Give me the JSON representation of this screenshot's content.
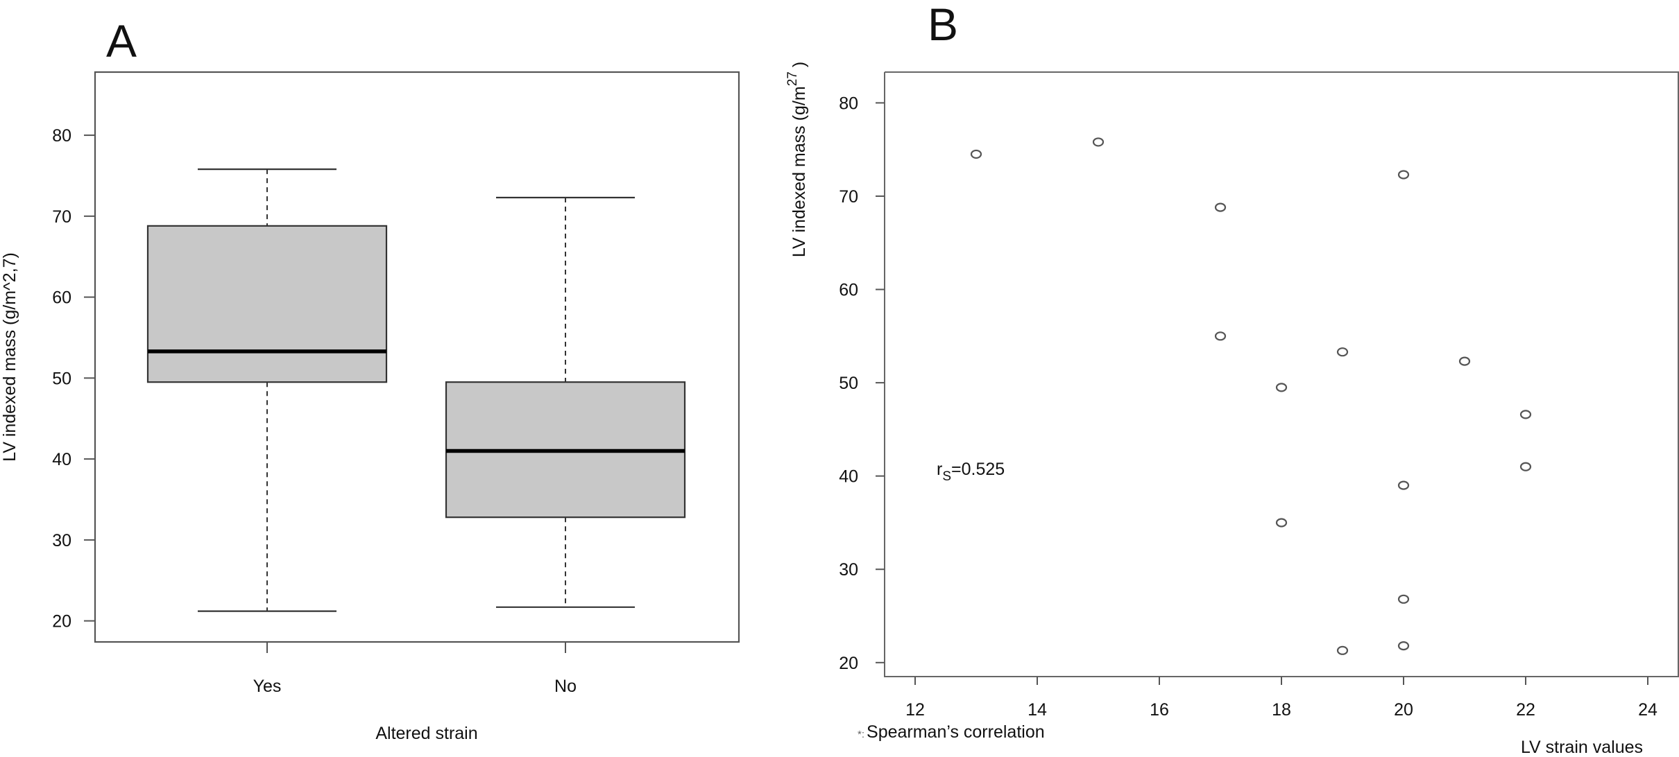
{
  "chart_data": [
    {
      "panel": "A",
      "type": "box",
      "xlabel": "Altered strain",
      "ylabel": "LV indexed mass (g/m^2,7)",
      "categories": [
        "Yes",
        "No"
      ],
      "boxes": [
        {
          "category": "Yes",
          "min": 21.2,
          "q1": 49.5,
          "median": 53.3,
          "q3": 68.8,
          "max": 75.8
        },
        {
          "category": "No",
          "min": 21.7,
          "q1": 32.8,
          "median": 41.0,
          "q3": 49.5,
          "max": 72.3
        }
      ],
      "yticks": [
        "20",
        "30",
        "40",
        "50",
        "60",
        "70",
        "80"
      ],
      "ylim": [
        17.4,
        87.8
      ],
      "box_color": "#c8c8c8"
    },
    {
      "panel": "B",
      "type": "scatter",
      "xlabel": "LV strain values",
      "ylabel_main": "LV indexed mass (g/m",
      "ylabel_sup": "27",
      "ylabel_close": ")",
      "xticks": [
        "12",
        "14",
        "16",
        "18",
        "20",
        "22",
        "24"
      ],
      "yticks": [
        "20",
        "30",
        "40",
        "50",
        "60",
        "70",
        "80"
      ],
      "xlim": [
        11.5,
        24.5
      ],
      "ylim": [
        18.5,
        83.3
      ],
      "points": [
        {
          "x": 13,
          "y": 74.5
        },
        {
          "x": 15,
          "y": 75.8
        },
        {
          "x": 17,
          "y": 68.8
        },
        {
          "x": 20,
          "y": 72.3
        },
        {
          "x": 17,
          "y": 55.0
        },
        {
          "x": 19,
          "y": 53.3
        },
        {
          "x": 21,
          "y": 52.3
        },
        {
          "x": 18,
          "y": 49.5
        },
        {
          "x": 22,
          "y": 46.6
        },
        {
          "x": 22,
          "y": 41.0
        },
        {
          "x": 20,
          "y": 39.0
        },
        {
          "x": 18,
          "y": 35.0
        },
        {
          "x": 20,
          "y": 26.8
        },
        {
          "x": 20,
          "y": 21.8
        },
        {
          "x": 19,
          "y": 21.3
        }
      ],
      "annotation": {
        "r": "r",
        "sub": "S",
        "value": "=0.525"
      },
      "footnote": {
        "marker": "*:",
        "text": "Spearman’s correlation"
      }
    }
  ]
}
